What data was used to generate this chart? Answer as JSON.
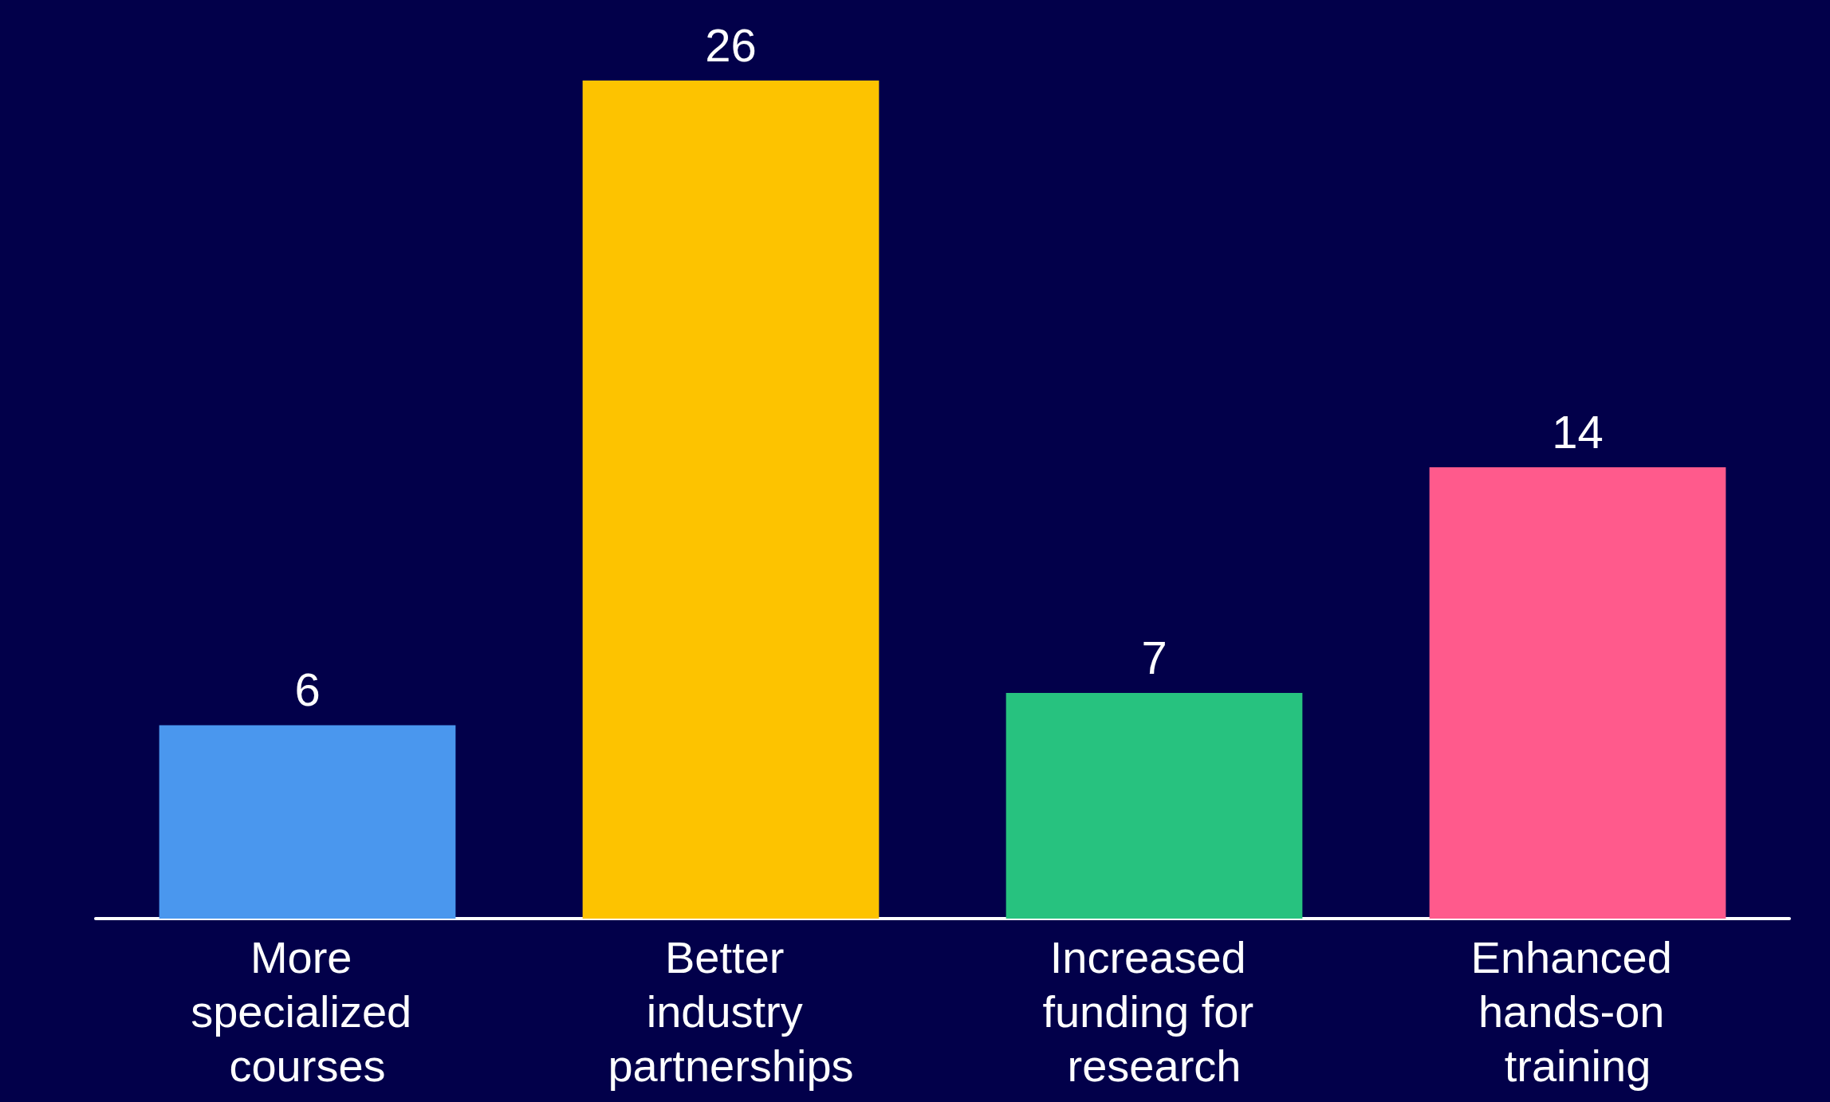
{
  "chart_data": {
    "type": "bar",
    "categories": [
      "More specialized courses",
      "Better industry partnerships",
      "Increased funding for research",
      "Enhanced hands-on training"
    ],
    "values": [
      6,
      26,
      7,
      14
    ],
    "colors": [
      "#4a97ee",
      "#fdc300",
      "#27c27f",
      "#ff5a8c"
    ],
    "data_labels": true
  }
}
